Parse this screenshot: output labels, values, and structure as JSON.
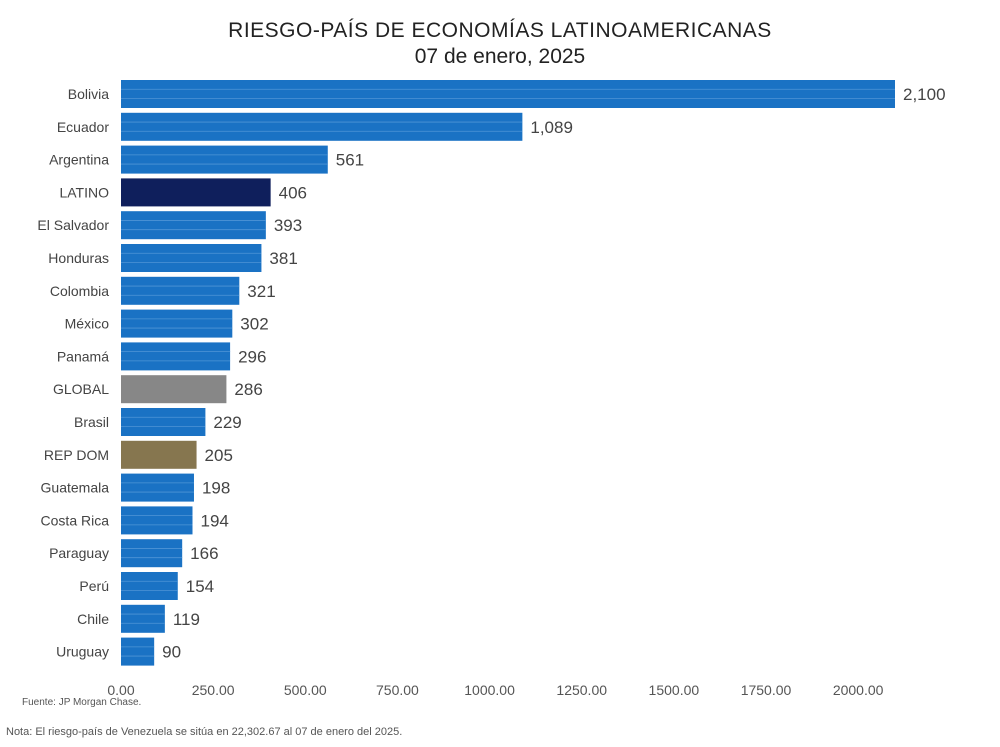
{
  "chart_data": {
    "type": "bar",
    "orientation": "horizontal",
    "title": "RIESGO-PAÍS DE ECONOMÍAS LATINOAMERICANAS",
    "subtitle": "07 de enero, 2025",
    "categories": [
      "Bolivia",
      "Ecuador",
      "Argentina",
      "LATINO",
      "El Salvador",
      "Honduras",
      "Colombia",
      "México",
      "Panamá",
      "GLOBAL",
      "Brasil",
      "REP DOM",
      "Guatemala",
      "Costa Rica",
      "Paraguay",
      "Perú",
      "Chile",
      "Uruguay"
    ],
    "values": [
      2100,
      1089,
      561,
      406,
      393,
      381,
      321,
      302,
      296,
      286,
      229,
      205,
      198,
      194,
      166,
      154,
      119,
      90
    ],
    "value_labels": [
      "2,100",
      "1,089",
      "561",
      "406",
      "393",
      "381",
      "321",
      "302",
      "296",
      "286",
      "229",
      "205",
      "198",
      "194",
      "166",
      "154",
      "119",
      "90"
    ],
    "bar_colors": [
      "#1a72c4",
      "#1a72c4",
      "#1a72c4",
      "#0f1f5c",
      "#1a72c4",
      "#1a72c4",
      "#1a72c4",
      "#1a72c4",
      "#1a72c4",
      "#878787",
      "#1a72c4",
      "#86764f",
      "#1a72c4",
      "#1a72c4",
      "#1a72c4",
      "#1a72c4",
      "#1a72c4",
      "#1a72c4"
    ],
    "xlim": [
      0,
      2100
    ],
    "x_ticks": [
      0,
      250,
      500,
      750,
      1000,
      1250,
      1500,
      1750,
      2000
    ],
    "x_tick_labels": [
      "0.00",
      "250.00",
      "500.00",
      "750.00",
      "1000.00",
      "1250.00",
      "1500.00",
      "1750.00",
      "2000.00"
    ],
    "grid": false,
    "source": "Fuente: JP Morgan Chase.",
    "note": "Nota: El riesgo-país de Venezuela se sitúa en 22,302.67 al 07 de enero del 2025."
  }
}
